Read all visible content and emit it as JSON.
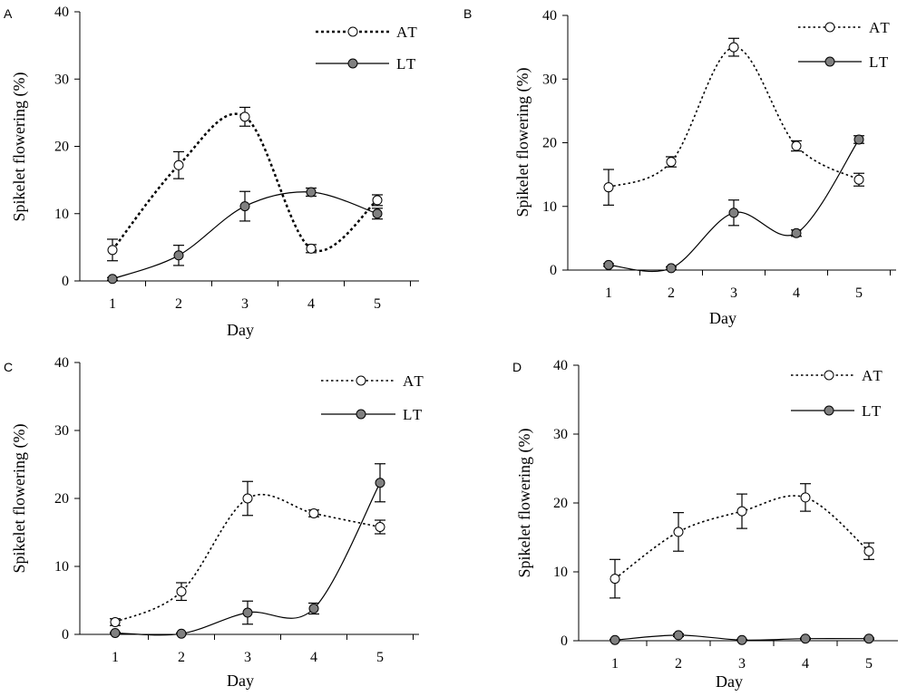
{
  "figure": {
    "background": "#ffffff",
    "ink": "#000000"
  },
  "chart_data": [
    {
      "panel": "A",
      "type": "line",
      "xlabel": "Day",
      "ylabel": "Spikelet flowering (%)",
      "categories": [
        "1",
        "2",
        "3",
        "4",
        "5"
      ],
      "x": [
        1,
        2,
        3,
        4,
        5
      ],
      "ylim": [
        0,
        40
      ],
      "yticks": [
        "0",
        "10",
        "20",
        "30",
        "40"
      ],
      "legend_position": "top-right",
      "series": [
        {
          "name": "AT",
          "marker": "open-circle",
          "line": "dotted-bold",
          "fill": "#ffffff",
          "values": [
            4.6,
            17.2,
            24.4,
            4.8,
            12
          ],
          "errors": [
            1.6,
            2.0,
            1.4,
            0.6,
            0.8
          ]
        },
        {
          "name": "LT",
          "marker": "filled-circle",
          "line": "solid",
          "fill": "#808080",
          "values": [
            0.3,
            3.8,
            11.1,
            13.2,
            10
          ],
          "errors": [
            0.2,
            1.5,
            2.2,
            0.6,
            0.8
          ]
        }
      ]
    },
    {
      "panel": "B",
      "type": "line",
      "xlabel": "Day",
      "ylabel": "Spikelet flowering (%)",
      "categories": [
        "1",
        "2",
        "3",
        "4",
        "5"
      ],
      "x": [
        1,
        2,
        3,
        4,
        5
      ],
      "ylim": [
        0,
        40
      ],
      "yticks": [
        "0",
        "10",
        "20",
        "30",
        "40"
      ],
      "legend_position": "top-right",
      "series": [
        {
          "name": "AT",
          "marker": "open-circle",
          "line": "dotted",
          "fill": "#ffffff",
          "values": [
            13,
            17,
            35,
            19.5,
            14.2
          ],
          "errors": [
            2.8,
            0.8,
            1.4,
            0.8,
            1.0
          ]
        },
        {
          "name": "LT",
          "marker": "filled-circle",
          "line": "solid",
          "fill": "#808080",
          "values": [
            0.8,
            0.3,
            9,
            5.8,
            20.5
          ],
          "errors": [
            0.2,
            0.2,
            2.0,
            0.5,
            0.6
          ]
        }
      ]
    },
    {
      "panel": "C",
      "type": "line",
      "xlabel": "Day",
      "ylabel": "Spikelet flowering (%)",
      "categories": [
        "1",
        "2",
        "3",
        "4",
        "5"
      ],
      "x": [
        1,
        2,
        3,
        4,
        5
      ],
      "ylim": [
        0,
        40
      ],
      "yticks": [
        "0",
        "10",
        "20",
        "30",
        "40"
      ],
      "legend_position": "top-right",
      "series": [
        {
          "name": "AT",
          "marker": "open-circle",
          "line": "dotted",
          "fill": "#ffffff",
          "values": [
            1.8,
            6.3,
            20,
            17.8,
            15.8
          ],
          "errors": [
            0.5,
            1.3,
            2.5,
            0.5,
            1.0
          ]
        },
        {
          "name": "LT",
          "marker": "filled-circle",
          "line": "solid",
          "fill": "#808080",
          "values": [
            0.2,
            0.1,
            3.2,
            3.8,
            22.3
          ],
          "errors": [
            0.1,
            0.1,
            1.7,
            0.8,
            2.8
          ]
        }
      ]
    },
    {
      "panel": "D",
      "type": "line",
      "xlabel": "Day",
      "ylabel": "Spikelet flowering (%)",
      "categories": [
        "1",
        "2",
        "3",
        "4",
        "5"
      ],
      "x": [
        1,
        2,
        3,
        4,
        5
      ],
      "ylim": [
        0,
        40
      ],
      "yticks": [
        "0",
        "10",
        "20",
        "30",
        "40"
      ],
      "legend_position": "top-right",
      "series": [
        {
          "name": "AT",
          "marker": "open-circle",
          "line": "dotted",
          "fill": "#ffffff",
          "values": [
            9,
            15.8,
            18.8,
            20.8,
            13
          ],
          "errors": [
            2.8,
            2.8,
            2.5,
            2.0,
            1.2
          ]
        },
        {
          "name": "LT",
          "marker": "filled-circle",
          "line": "solid",
          "fill": "#808080",
          "values": [
            0.1,
            0.8,
            0.1,
            0.3,
            0.3
          ],
          "errors": [
            0.1,
            0.2,
            0.1,
            0.1,
            0.1
          ]
        }
      ]
    }
  ]
}
